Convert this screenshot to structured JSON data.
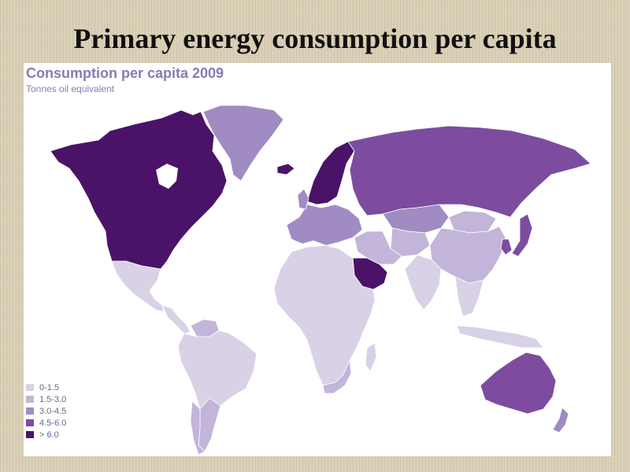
{
  "slide": {
    "title": "Primary energy consumption  per capita"
  },
  "map": {
    "title": "Consumption per capita 2009",
    "subtitle": "Tonnes oil equivalent",
    "colors": {
      "c0": "#d9d1e6",
      "c1": "#c2b5d9",
      "c2": "#a08cc3",
      "c3": "#7d4c9e",
      "c4": "#4a1368"
    },
    "legend": [
      {
        "label": "0-1.5",
        "class": "c0"
      },
      {
        "label": "1.5-3.0",
        "class": "c1"
      },
      {
        "label": "3.0-4.5",
        "class": "c2"
      },
      {
        "label": "4.5-6.0",
        "class": "c3"
      },
      {
        "label": "> 6.0",
        "class": "c4"
      }
    ],
    "regions": [
      {
        "name": "north-america",
        "class": "c4"
      },
      {
        "name": "greenland",
        "class": "c2"
      },
      {
        "name": "mexico",
        "class": "c0"
      },
      {
        "name": "central-america",
        "class": "c0"
      },
      {
        "name": "venezuela",
        "class": "c1"
      },
      {
        "name": "south-america",
        "class": "c0"
      },
      {
        "name": "argentina",
        "class": "c1"
      },
      {
        "name": "chile",
        "class": "c1"
      },
      {
        "name": "iceland",
        "class": "c4"
      },
      {
        "name": "scandinavia",
        "class": "c4"
      },
      {
        "name": "western-europe",
        "class": "c2"
      },
      {
        "name": "russia",
        "class": "c3"
      },
      {
        "name": "kazakhstan",
        "class": "c2"
      },
      {
        "name": "central-asia",
        "class": "c1"
      },
      {
        "name": "middle-east",
        "class": "c1"
      },
      {
        "name": "saudi-arabia",
        "class": "c4"
      },
      {
        "name": "africa",
        "class": "c0"
      },
      {
        "name": "south-africa",
        "class": "c1"
      },
      {
        "name": "china",
        "class": "c1"
      },
      {
        "name": "mongolia",
        "class": "c1"
      },
      {
        "name": "india",
        "class": "c0"
      },
      {
        "name": "southeast-asia",
        "class": "c0"
      },
      {
        "name": "indonesia",
        "class": "c0"
      },
      {
        "name": "japan",
        "class": "c3"
      },
      {
        "name": "korea",
        "class": "c3"
      },
      {
        "name": "australia",
        "class": "c3"
      },
      {
        "name": "new-zealand",
        "class": "c2"
      },
      {
        "name": "madagascar",
        "class": "c0"
      }
    ]
  }
}
